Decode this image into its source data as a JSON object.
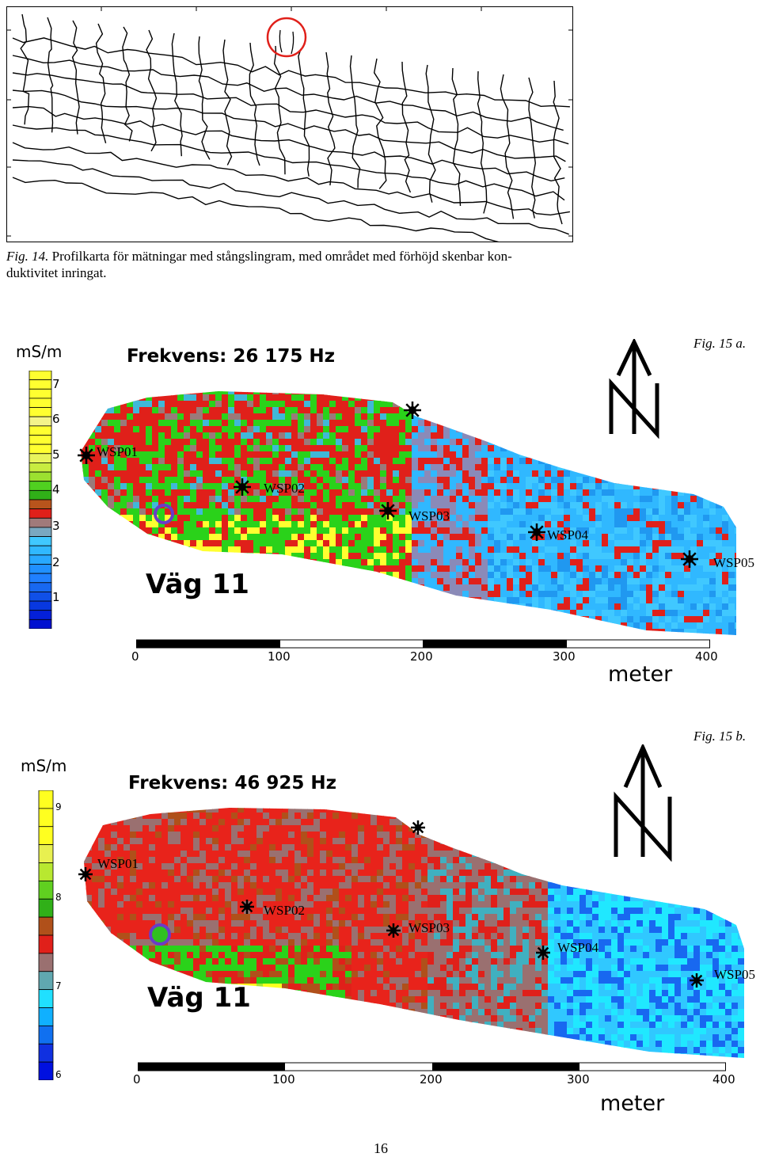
{
  "figure14": {
    "caption_label": "Fig. 14.",
    "caption_line1": "Profilkarta för mätningar med stångslingram, med området med förhöjd skenbar kon-",
    "caption_line2": "duktivitet inringat."
  },
  "figure15a": {
    "fig_label": "Fig. 15 a.",
    "legend_title": "mS/m",
    "legend_ticks": [
      "7",
      "6",
      "5",
      "4",
      "3",
      "2",
      "1"
    ],
    "frequency_title": "Frekvens: 26 175 Hz",
    "road_label": "Väg 11",
    "scale_labels": [
      "0",
      "100",
      "200",
      "300",
      "400"
    ],
    "scale_unit": "meter",
    "stations": [
      "WSP01",
      "WSP02",
      "WSP03",
      "WSP04",
      "WSP05"
    ]
  },
  "figure15b": {
    "fig_label": "Fig. 15 b.",
    "legend_title": "mS/m",
    "legend_ticks": [
      "9",
      "8",
      "7",
      "6"
    ],
    "frequency_title": "Frekvens: 46 925 Hz",
    "road_label": "Väg 11",
    "scale_labels": [
      "0",
      "100",
      "200",
      "300",
      "400"
    ],
    "scale_unit": "meter",
    "stations": [
      "WSP01",
      "WSP02",
      "WSP03",
      "WSP04",
      "WSP05"
    ]
  },
  "colors": {
    "map_red": "#e8231b",
    "map_green": "#2ad21a",
    "map_yellow": "#ffff10",
    "map_blue": "#1aa8ff",
    "map_gray": "#9a7a7a",
    "map_brown": "#b0501a",
    "highlight_circle": "#e0201a",
    "marker_circle": "#6a3cc8"
  },
  "page_number": "16"
}
